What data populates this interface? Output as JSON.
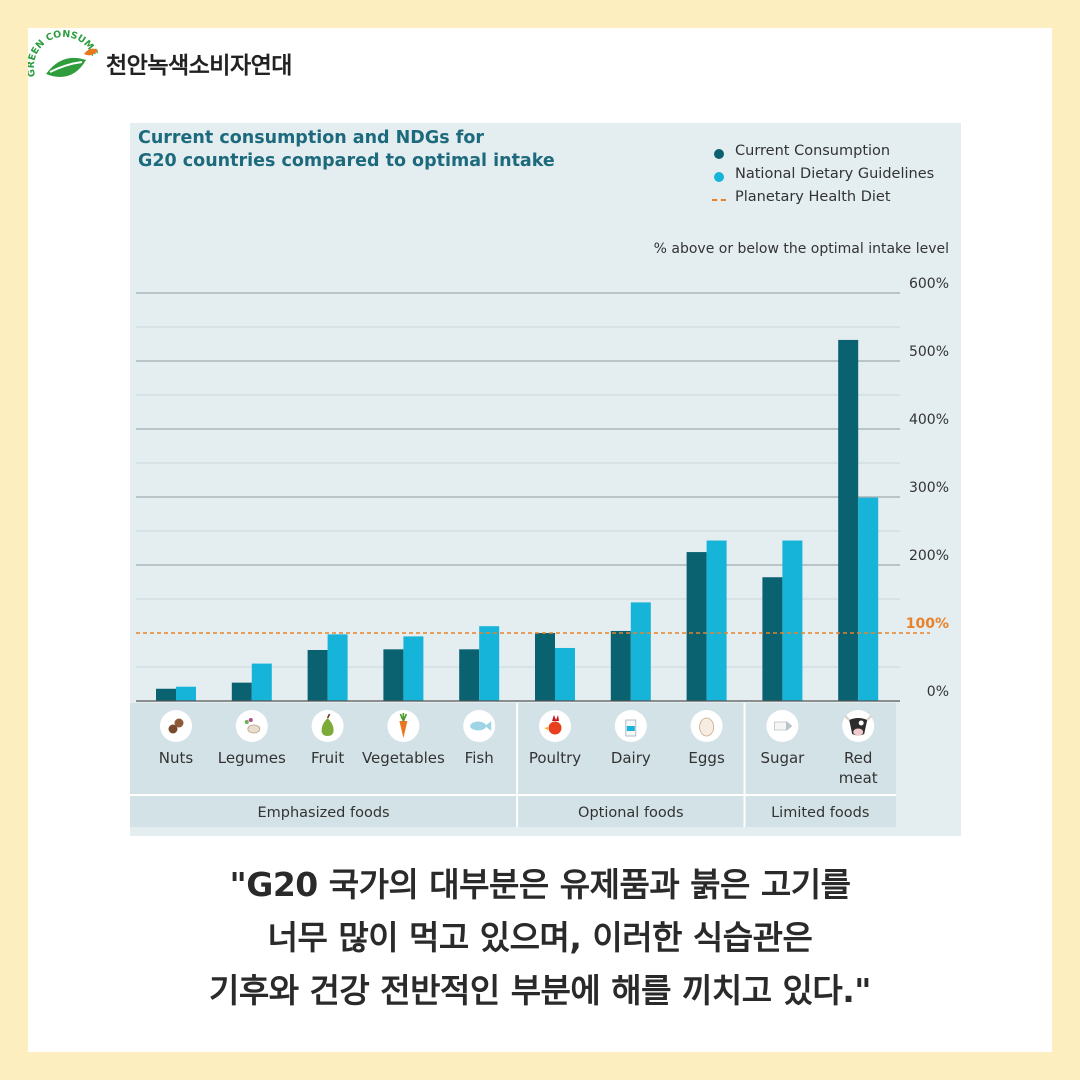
{
  "logo": {
    "org_name": "천안녹색소비자연대",
    "ring_text": "GREEN CONSUMERS"
  },
  "colors": {
    "current": "#0a6170",
    "ndg": "#15b4d8",
    "planetary": "#e8822a",
    "page_bg": "#fdeec0",
    "chart_bg": "#e4eef1",
    "category_band": "#d3e2e7"
  },
  "chart_data": {
    "type": "bar",
    "title": "Current consumption and NDGs for\nG20 countries compared to optimal intake",
    "ylabel": "% above or below the optimal intake level",
    "ylim": [
      0,
      600
    ],
    "yticks": [
      "600%",
      "500%",
      "400%",
      "300%",
      "200%",
      "100%",
      "0%"
    ],
    "ytick_values": [
      600,
      500,
      400,
      300,
      200,
      100,
      0
    ],
    "grid": true,
    "legend_position": "top-right",
    "categories": [
      "Nuts",
      "Legumes",
      "Fruit",
      "Vegetables",
      "Fish",
      "Poultry",
      "Dairy",
      "Eggs",
      "Sugar",
      "Red\nmeat"
    ],
    "category_icons": [
      "peanut-icon",
      "beans-icon",
      "pear-icon",
      "carrot-icon",
      "fish-icon",
      "chicken-icon",
      "milk-icon",
      "egg-icon",
      "sugar-icon",
      "cow-icon"
    ],
    "series": [
      {
        "name": "Current Consumption",
        "values": [
          18,
          27,
          75,
          76,
          76,
          100,
          103,
          219,
          182,
          531
        ]
      },
      {
        "name": "National Dietary Guidelines",
        "values": [
          21,
          55,
          98,
          95,
          110,
          78,
          145,
          236,
          236,
          299
        ]
      }
    ],
    "reference_line": {
      "name": "Planetary Health Diet",
      "value": 100,
      "label": "100%"
    },
    "groups": [
      {
        "label": "Emphasized foods",
        "categories": [
          "Nuts",
          "Legumes",
          "Fruit",
          "Vegetables",
          "Fish"
        ]
      },
      {
        "label": "Optional foods",
        "categories": [
          "Poultry",
          "Dairy",
          "Eggs"
        ]
      },
      {
        "label": "Limited foods",
        "categories": [
          "Sugar",
          "Red\nmeat"
        ]
      }
    ]
  },
  "quote": {
    "line1": "\"G20 국가의 대부분은 유제품과 붉은 고기를",
    "line2": "너무 많이 먹고 있으며, 이러한 식습관은",
    "line3": "기후와 건강 전반적인 부분에 해를 끼치고 있다.\""
  }
}
